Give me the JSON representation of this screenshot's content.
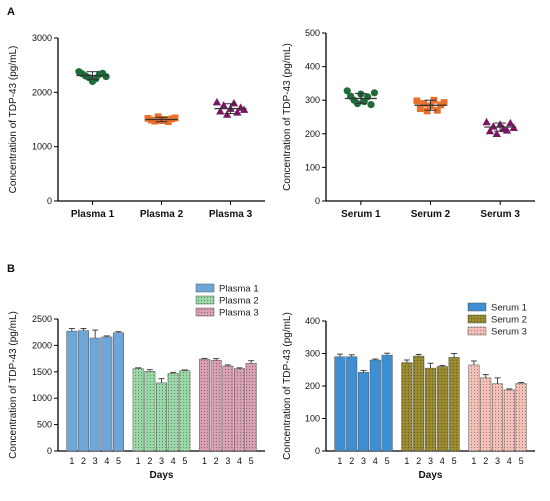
{
  "figure": {
    "panel_labels": [
      "A",
      "B"
    ]
  },
  "chart_data": [
    {
      "type": "scatter",
      "ylabel": "Concentration of TDP-43 (pg/mL)",
      "ylim": [
        0,
        3000
      ],
      "yticks": [
        0,
        1000,
        2000,
        3000
      ],
      "categories": [
        "Plasma 1",
        "Plasma 2",
        "Plasma 3"
      ],
      "series": [
        {
          "color": "#1f6b3a",
          "marker": "circle",
          "mean": 2310,
          "sd": 70,
          "values": [
            2380,
            2340,
            2300,
            2270,
            2200,
            2250,
            2330,
            2350,
            2290
          ]
        },
        {
          "color": "#e8702a",
          "marker": "square",
          "mean": 1500,
          "sd": 40,
          "values": [
            1520,
            1490,
            1470,
            1550,
            1480,
            1500,
            1460,
            1510,
            1530
          ]
        },
        {
          "color": "#7a1763",
          "marker": "triangle",
          "mean": 1700,
          "sd": 90,
          "values": [
            1820,
            1650,
            1760,
            1590,
            1700,
            1800,
            1630,
            1720,
            1680
          ]
        }
      ]
    },
    {
      "type": "scatter",
      "ylabel": "Concentration of TDP-43 (pg/mL)",
      "ylim": [
        0,
        500
      ],
      "yticks": [
        0,
        100,
        200,
        300,
        400,
        500
      ],
      "categories": [
        "Serum 1",
        "Serum 2",
        "Serum 3"
      ],
      "series": [
        {
          "color": "#1f6b3a",
          "marker": "circle",
          "mean": 305,
          "sd": 15,
          "values": [
            328,
            312,
            300,
            290,
            318,
            296,
            310,
            287,
            322
          ]
        },
        {
          "color": "#e8702a",
          "marker": "square",
          "mean": 285,
          "sd": 15,
          "values": [
            298,
            275,
            290,
            268,
            283,
            300,
            270,
            286,
            293
          ]
        },
        {
          "color": "#7a1763",
          "marker": "triangle",
          "mean": 220,
          "sd": 12,
          "values": [
            235,
            208,
            222,
            200,
            228,
            215,
            210,
            232,
            218
          ]
        }
      ]
    },
    {
      "type": "bar",
      "ylabel": "Concentration of TDP-43 (pg/mL)",
      "xlabel": "Days",
      "ylim": [
        0,
        2500
      ],
      "yticks": [
        0,
        500,
        1000,
        1500,
        2000,
        2500
      ],
      "days": [
        "1",
        "2",
        "3",
        "4",
        "5"
      ],
      "legend_position": "top-right",
      "series": [
        {
          "name": "Plasma 1",
          "color": "#6fa6d8",
          "pattern": "solid",
          "values": [
            2270,
            2280,
            2140,
            2160,
            2240
          ],
          "errors": [
            50,
            40,
            150,
            20,
            20
          ]
        },
        {
          "name": "Plasma 2",
          "color": "#9bd8a8",
          "pattern": "dots",
          "values": [
            1560,
            1510,
            1290,
            1470,
            1520
          ],
          "errors": [
            15,
            30,
            80,
            20,
            15
          ]
        },
        {
          "name": "Plasma 3",
          "color": "#d8a0b2",
          "pattern": "dots",
          "values": [
            1740,
            1720,
            1610,
            1560,
            1660
          ],
          "errors": [
            15,
            30,
            20,
            15,
            50
          ]
        }
      ]
    },
    {
      "type": "bar",
      "ylabel": "Concentration of TDP-43 (pg/mL)",
      "xlabel": "Days",
      "ylim": [
        0,
        400
      ],
      "yticks": [
        0,
        100,
        200,
        300,
        400
      ],
      "days": [
        "1",
        "2",
        "3",
        "4",
        "5"
      ],
      "legend_position": "top-right",
      "series": [
        {
          "name": "Serum 1",
          "color": "#3d8fd1",
          "pattern": "solid",
          "values": [
            290,
            290,
            242,
            280,
            295
          ],
          "errors": [
            8,
            6,
            6,
            3,
            6
          ]
        },
        {
          "name": "Serum 2",
          "color": "#9a8a30",
          "pattern": "dots",
          "values": [
            272,
            292,
            255,
            260,
            288
          ],
          "errors": [
            8,
            5,
            15,
            3,
            12
          ]
        },
        {
          "name": "Serum 3",
          "color": "#f2c0b6",
          "pattern": "dots",
          "values": [
            265,
            225,
            207,
            188,
            208
          ],
          "errors": [
            12,
            10,
            18,
            3,
            3
          ]
        }
      ]
    }
  ]
}
